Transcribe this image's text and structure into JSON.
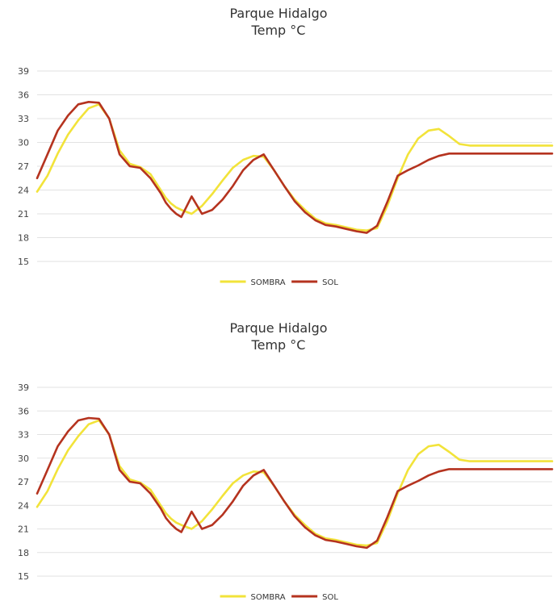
{
  "colors": {
    "SOMBRA": "#f2e33a",
    "SOL": "#b5331f"
  },
  "chart_data": [
    {
      "type": "line",
      "title": "Parque Hidalgo",
      "subtitle": "Temp °C",
      "xlabel": "",
      "ylabel": "",
      "ylim": [
        15,
        39
      ],
      "yticks": [
        "39",
        "36",
        "33",
        "30",
        "27",
        "24",
        "21",
        "18",
        "15"
      ],
      "grid": true,
      "legend_position": "bottom",
      "x": [
        0,
        2,
        4,
        6,
        8,
        10,
        12,
        14,
        16,
        18,
        20,
        22,
        24,
        25,
        26,
        27,
        28,
        30,
        32,
        34,
        36,
        38,
        40,
        42,
        44,
        46,
        48,
        50,
        52,
        54,
        56,
        58,
        60,
        62,
        64,
        66,
        68,
        70,
        72,
        74,
        76,
        78,
        80,
        82,
        84,
        86,
        88,
        90,
        92,
        94,
        96,
        98,
        100
      ],
      "series": [
        {
          "name": "SOMBRA",
          "values": [
            23.8,
            25.8,
            28.6,
            31.0,
            32.8,
            34.3,
            34.8,
            33.0,
            29.0,
            27.3,
            26.9,
            26.0,
            24.0,
            23.0,
            22.3,
            21.8,
            21.5,
            21.0,
            22.0,
            23.5,
            25.2,
            26.8,
            27.8,
            28.3,
            28.2,
            26.5,
            24.5,
            22.8,
            21.5,
            20.4,
            19.8,
            19.6,
            19.3,
            19.0,
            18.9,
            19.2,
            22.0,
            25.5,
            28.5,
            30.5,
            31.5,
            31.7,
            30.8,
            29.8,
            29.6,
            29.6,
            29.6,
            29.6,
            29.6,
            29.6,
            29.6,
            29.6,
            29.6
          ]
        },
        {
          "name": "SOL",
          "values": [
            25.5,
            28.5,
            31.5,
            33.4,
            34.8,
            35.1,
            35.0,
            33.0,
            28.5,
            27.0,
            26.8,
            25.5,
            23.6,
            22.4,
            21.6,
            21.0,
            20.6,
            23.2,
            21.0,
            21.5,
            22.8,
            24.5,
            26.5,
            27.8,
            28.5,
            26.5,
            24.5,
            22.6,
            21.2,
            20.2,
            19.6,
            19.4,
            19.1,
            18.8,
            18.6,
            19.5,
            22.5,
            25.8,
            26.5,
            27.1,
            27.8,
            28.3,
            28.6,
            28.6,
            28.6,
            28.6,
            28.6,
            28.6,
            28.6,
            28.6,
            28.6,
            28.6,
            28.6
          ]
        }
      ],
      "legend": [
        "SOMBRA",
        "SOL"
      ]
    },
    {
      "type": "line",
      "title": "Parque Hidalgo",
      "subtitle": "Temp °C",
      "xlabel": "",
      "ylabel": "",
      "ylim": [
        15,
        39
      ],
      "yticks": [
        "39",
        "36",
        "33",
        "30",
        "27",
        "24",
        "21",
        "18",
        "15"
      ],
      "grid": true,
      "legend_position": "bottom",
      "x": [
        0,
        2,
        4,
        6,
        8,
        10,
        12,
        14,
        16,
        18,
        20,
        22,
        24,
        25,
        26,
        27,
        28,
        30,
        32,
        34,
        36,
        38,
        40,
        42,
        44,
        46,
        48,
        50,
        52,
        54,
        56,
        58,
        60,
        62,
        64,
        66,
        68,
        70,
        72,
        74,
        76,
        78,
        80,
        82,
        84,
        86,
        88,
        90,
        92,
        94,
        96,
        98,
        100
      ],
      "series": [
        {
          "name": "SOMBRA",
          "values": [
            23.8,
            25.8,
            28.6,
            31.0,
            32.8,
            34.3,
            34.8,
            33.0,
            29.0,
            27.3,
            26.9,
            26.0,
            24.0,
            23.0,
            22.3,
            21.8,
            21.5,
            21.0,
            22.0,
            23.5,
            25.2,
            26.8,
            27.8,
            28.3,
            28.2,
            26.5,
            24.5,
            22.8,
            21.5,
            20.4,
            19.8,
            19.6,
            19.3,
            19.0,
            18.9,
            19.2,
            22.0,
            25.5,
            28.5,
            30.5,
            31.5,
            31.7,
            30.8,
            29.8,
            29.6,
            29.6,
            29.6,
            29.6,
            29.6,
            29.6,
            29.6,
            29.6,
            29.6
          ]
        },
        {
          "name": "SOL",
          "values": [
            25.5,
            28.5,
            31.5,
            33.4,
            34.8,
            35.1,
            35.0,
            33.0,
            28.5,
            27.0,
            26.8,
            25.5,
            23.6,
            22.4,
            21.6,
            21.0,
            20.6,
            23.2,
            21.0,
            21.5,
            22.8,
            24.5,
            26.5,
            27.8,
            28.5,
            26.5,
            24.5,
            22.6,
            21.2,
            20.2,
            19.6,
            19.4,
            19.1,
            18.8,
            18.6,
            19.5,
            22.5,
            25.8,
            26.5,
            27.1,
            27.8,
            28.3,
            28.6,
            28.6,
            28.6,
            28.6,
            28.6,
            28.6,
            28.6,
            28.6,
            28.6,
            28.6,
            28.6
          ]
        }
      ],
      "legend": [
        "SOMBRA",
        "SOL"
      ]
    }
  ]
}
